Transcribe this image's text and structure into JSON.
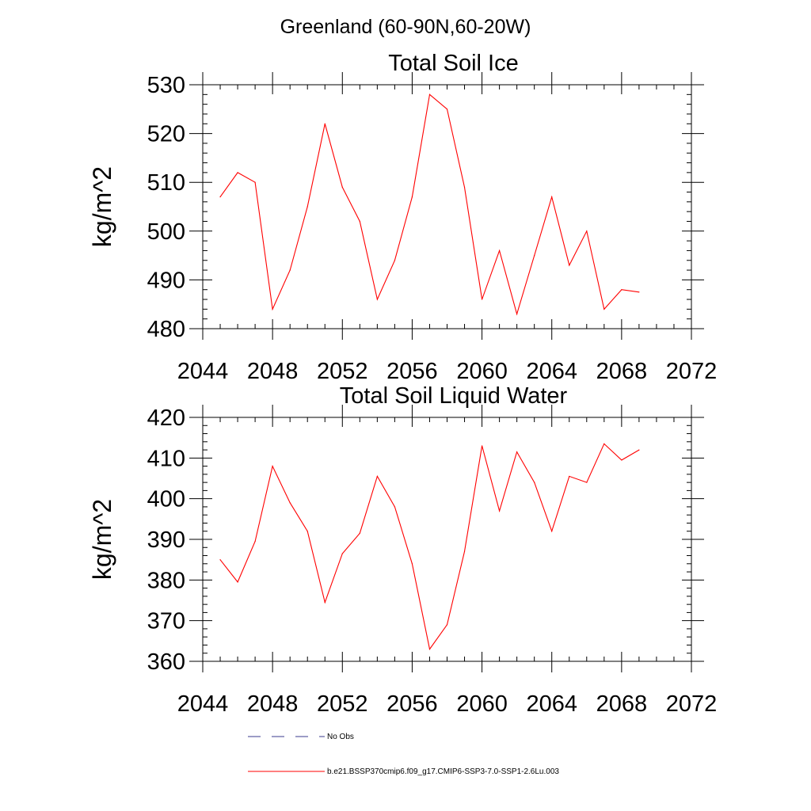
{
  "figure_title": "Greenland (60-90N,60-20W)",
  "colors": {
    "series_line": "#ff0000",
    "obs_line": "#3a3a8c",
    "axis": "#000000"
  },
  "chart_data": [
    {
      "type": "line",
      "title": "Total Soil Ice",
      "xlabel": "",
      "ylabel": "kg/m^2",
      "xlim": [
        2044,
        2072
      ],
      "ylim": [
        480,
        530
      ],
      "xticks": [
        2044,
        2048,
        2052,
        2056,
        2060,
        2064,
        2068,
        2072
      ],
      "yticks": [
        480,
        490,
        500,
        510,
        520,
        530
      ],
      "grid": false,
      "x": [
        2045,
        2046,
        2047,
        2048,
        2049,
        2050,
        2051,
        2052,
        2053,
        2054,
        2055,
        2056,
        2057,
        2058,
        2059,
        2060,
        2061,
        2062,
        2063,
        2064,
        2065,
        2066,
        2067,
        2068,
        2069
      ],
      "series": [
        {
          "name": "b.e21.BSSP370cmip6.f09_g17.CMIP6-SSP3-7.0-SSP1-2.6Lu.003",
          "values": [
            507,
            512,
            510,
            484,
            492,
            505,
            522,
            509,
            502,
            486,
            494,
            507,
            528,
            525,
            509,
            486,
            496,
            483,
            495,
            507,
            493,
            500,
            484,
            488,
            487.5
          ]
        }
      ]
    },
    {
      "type": "line",
      "title": "Total Soil Liquid Water",
      "xlabel": "",
      "ylabel": "kg/m^2",
      "xlim": [
        2044,
        2072
      ],
      "ylim": [
        360,
        420
      ],
      "xticks": [
        2044,
        2048,
        2052,
        2056,
        2060,
        2064,
        2068,
        2072
      ],
      "yticks": [
        360,
        370,
        380,
        390,
        400,
        410,
        420
      ],
      "grid": false,
      "x": [
        2045,
        2046,
        2047,
        2048,
        2049,
        2050,
        2051,
        2052,
        2053,
        2054,
        2055,
        2056,
        2057,
        2058,
        2059,
        2060,
        2061,
        2062,
        2063,
        2064,
        2065,
        2066,
        2067,
        2068,
        2069
      ],
      "series": [
        {
          "name": "b.e21.BSSP370cmip6.f09_g17.CMIP6-SSP3-7.0-SSP1-2.6Lu.003",
          "values": [
            385,
            379.5,
            389.5,
            408,
            399,
            392,
            374.5,
            386.5,
            391.5,
            405.5,
            398,
            384,
            363,
            369,
            387,
            413,
            397,
            411.5,
            404,
            392,
            405.5,
            404,
            413.5,
            409.5,
            412
          ]
        }
      ]
    }
  ],
  "legend": {
    "placement": "bottom",
    "entries": [
      {
        "label": "No Obs",
        "style": "dashed"
      },
      {
        "label": "b.e21.BSSP370cmip6.f09_g17.CMIP6-SSP3-7.0-SSP1-2.6Lu.003",
        "style": "solid"
      }
    ]
  }
}
